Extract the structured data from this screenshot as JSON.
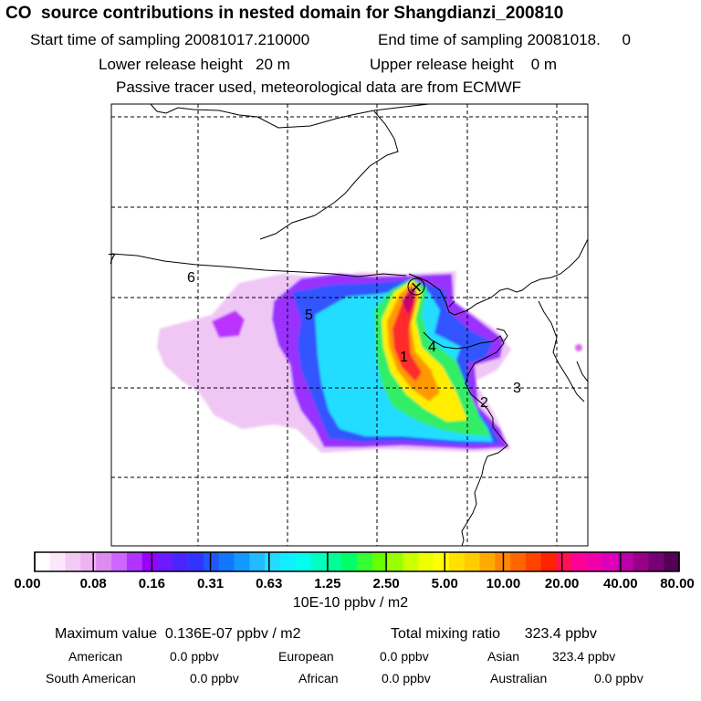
{
  "header": {
    "title": "CO  source contributions in nested domain for Shangdianzi_200810",
    "start_label": "Start time of sampling 20081017.210000",
    "end_label": "End time of sampling 20081018.     0",
    "lower_release": "Lower release height   20 m",
    "upper_release": "Upper release height    0 m",
    "tracer_note": "Passive tracer used, meteorological data are from ECMWF"
  },
  "map": {
    "region_labels": [
      "1",
      "2",
      "3",
      "4",
      "5",
      "6",
      "7"
    ],
    "receptor_marker": "×"
  },
  "colorbar": {
    "ticks": [
      "0.00",
      "0.08",
      "0.16",
      "0.31",
      "0.63",
      "1.25",
      "2.50",
      "5.00",
      "10.00",
      "20.00",
      "40.00",
      "80.00"
    ],
    "colors": [
      "#ffffff",
      "#fbe6fb",
      "#f4c9f6",
      "#eeb1f3",
      "#dd8bf0",
      "#cc66ff",
      "#b133ff",
      "#9900ff",
      "#6a1bff",
      "#4b25ff",
      "#3333ff",
      "#2255ff",
      "#1177ff",
      "#1199ff",
      "#22bbff",
      "#22ddff",
      "#11eeff",
      "#00ffee",
      "#00ffc0",
      "#00ff99",
      "#00ff66",
      "#33ff33",
      "#66ff00",
      "#99ff00",
      "#ccff00",
      "#eeff00",
      "#ffff00",
      "#ffe000",
      "#ffcc00",
      "#ffaa00",
      "#ff8800",
      "#ff6600",
      "#ff4400",
      "#ff2200",
      "#ff1155",
      "#ff0099",
      "#ee00aa",
      "#dd00bb",
      "#bb00aa",
      "#990088",
      "#770077",
      "#550055"
    ],
    "unit": "10E-10 ppbv / m2"
  },
  "chart_data": {
    "type": "heatmap",
    "title": "CO  source contributions in nested domain for Shangdianzi_200810",
    "colorbar_levels": [
      0.0,
      0.08,
      0.16,
      0.31,
      0.63,
      1.25,
      2.5,
      5.0,
      10.0,
      20.0,
      40.0,
      80.0
    ],
    "colorbar_unit": "10E-10 ppbv / m2",
    "maximum_value": "0.136E-07 ppbv / m2",
    "total_mixing_ratio_ppbv": 323.4,
    "regional_contributions_ppbv": {
      "American": 0.0,
      "European": 0.0,
      "Asian": 323.4,
      "South American": 0.0,
      "African": 0.0,
      "Australian": 0.0
    },
    "grid": true
  },
  "summary": {
    "max_text": "Maximum value  0.136E-07 ppbv / m2",
    "total_text": "Total mixing ratio      323.4 ppbv",
    "row1": [
      {
        "name": "American",
        "value": "0.0 ppbv"
      },
      {
        "name": "European",
        "value": "0.0 ppbv"
      },
      {
        "name": "Asian",
        "value": "323.4 ppbv"
      }
    ],
    "row2": [
      {
        "name": "South American",
        "value": "0.0 ppbv"
      },
      {
        "name": "African",
        "value": "0.0 ppbv"
      },
      {
        "name": "Australian",
        "value": "0.0 ppbv"
      }
    ]
  }
}
